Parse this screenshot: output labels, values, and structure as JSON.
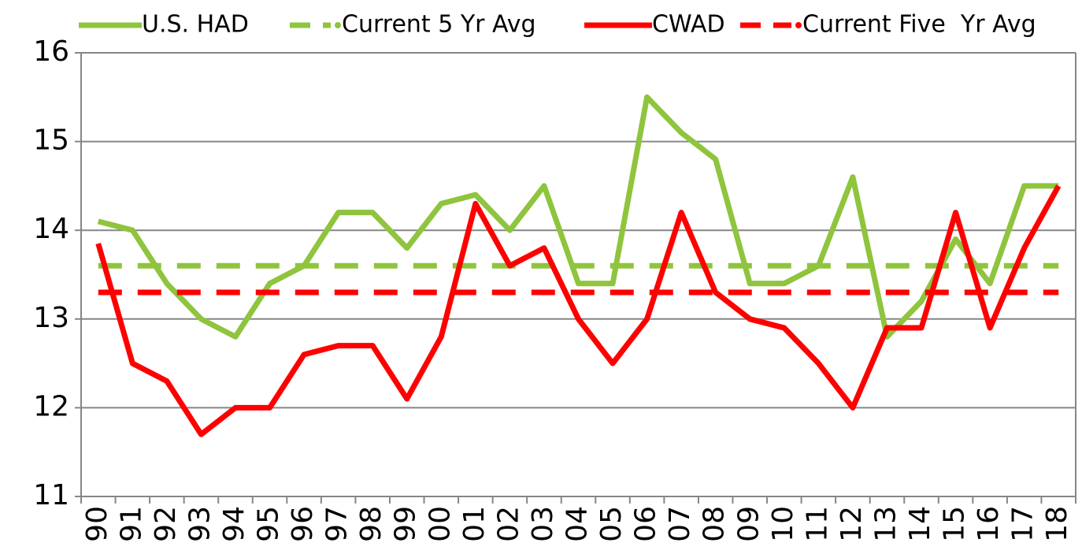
{
  "chart_data": {
    "type": "line",
    "categories": [
      "90",
      "91",
      "92",
      "93",
      "94",
      "95",
      "96",
      "97",
      "98",
      "99",
      "00",
      "01",
      "02",
      "03",
      "04",
      "05",
      "06",
      "07",
      "08",
      "09",
      "10",
      "11",
      "12",
      "13",
      "14",
      "15",
      "16",
      "17",
      "18"
    ],
    "series": [
      {
        "name": "U.S. HAD",
        "color": "#8fc43d",
        "dashed": false,
        "values": [
          14.1,
          14.0,
          13.4,
          13.0,
          12.8,
          13.4,
          13.6,
          14.2,
          14.2,
          13.8,
          14.3,
          14.4,
          14.0,
          14.5,
          13.4,
          13.4,
          15.5,
          15.1,
          14.8,
          13.4,
          13.4,
          13.6,
          14.6,
          12.8,
          13.2,
          13.9,
          13.4,
          14.5,
          14.5
        ]
      },
      {
        "name": "Current 5 Yr Avg",
        "color": "#8fc43d",
        "dashed": true,
        "values": [
          13.6,
          13.6,
          13.6,
          13.6,
          13.6,
          13.6,
          13.6,
          13.6,
          13.6,
          13.6,
          13.6,
          13.6,
          13.6,
          13.6,
          13.6,
          13.6,
          13.6,
          13.6,
          13.6,
          13.6,
          13.6,
          13.6,
          13.6,
          13.6,
          13.6,
          13.6,
          13.6,
          13.6,
          13.6
        ]
      },
      {
        "name": "CWAD",
        "color": "#ff0000",
        "dashed": false,
        "values": [
          13.85,
          12.5,
          12.3,
          11.7,
          12.0,
          12.0,
          12.6,
          12.7,
          12.7,
          12.1,
          12.8,
          14.3,
          13.6,
          13.8,
          13.0,
          12.5,
          13.0,
          14.2,
          13.3,
          13.0,
          12.9,
          12.5,
          12.0,
          12.9,
          12.9,
          14.2,
          12.9,
          13.8,
          14.5
        ]
      },
      {
        "name": "Current Five  Yr Avg",
        "color": "#ff0000",
        "dashed": true,
        "values": [
          13.3,
          13.3,
          13.3,
          13.3,
          13.3,
          13.3,
          13.3,
          13.3,
          13.3,
          13.3,
          13.3,
          13.3,
          13.3,
          13.3,
          13.3,
          13.3,
          13.3,
          13.3,
          13.3,
          13.3,
          13.3,
          13.3,
          13.3,
          13.3,
          13.3,
          13.3,
          13.3,
          13.3,
          13.3
        ]
      }
    ],
    "ylim": [
      11,
      16
    ],
    "yticks": [
      11,
      12,
      13,
      14,
      15,
      16
    ],
    "grid": true
  }
}
